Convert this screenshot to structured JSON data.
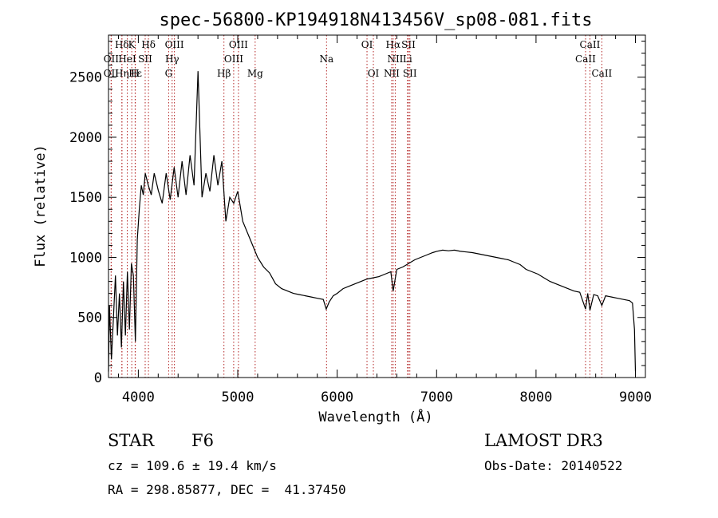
{
  "chart_data": {
    "type": "line",
    "title": "spec-56800-KP194918N413456V_sp08-081.fits",
    "xlabel": "Wavelength (Å)",
    "ylabel": "Flux (relative)",
    "xlim": [
      3700,
      9100
    ],
    "ylim": [
      0,
      2850
    ],
    "xticks": [
      4000,
      5000,
      6000,
      7000,
      8000,
      9000
    ],
    "yticks": [
      0,
      500,
      1000,
      1500,
      2000,
      2500
    ],
    "series": [
      {
        "x": [
          3700,
          3710,
          3730,
          3750,
          3770,
          3790,
          3810,
          3830,
          3850,
          3870,
          3890,
          3910,
          3930,
          3950,
          3970,
          3990,
          4010,
          4030,
          4050,
          4070,
          4100,
          4130,
          4160,
          4200,
          4240,
          4280,
          4320,
          4360,
          4400,
          4440,
          4480,
          4520,
          4560,
          4600,
          4640,
          4680,
          4720,
          4760,
          4800,
          4840,
          4880,
          4920,
          4960,
          5000,
          5050,
          5100,
          5150,
          5200,
          5260,
          5320,
          5380,
          5440,
          5500,
          5560,
          5620,
          5680,
          5740,
          5800,
          5860,
          5890,
          5920,
          5960,
          6000,
          6060,
          6120,
          6180,
          6240,
          6300,
          6360,
          6420,
          6480,
          6540,
          6563,
          6600,
          6660,
          6720,
          6780,
          6840,
          6900,
          6960,
          7000,
          7060,
          7120,
          7180,
          7240,
          7300,
          7360,
          7420,
          7480,
          7540,
          7600,
          7660,
          7720,
          7780,
          7840,
          7900,
          7960,
          8020,
          8080,
          8140,
          8200,
          8260,
          8320,
          8380,
          8440,
          8498,
          8520,
          8542,
          8580,
          8620,
          8662,
          8700,
          8760,
          8820,
          8880,
          8940,
          8970,
          8990,
          9000
        ],
        "values": [
          50,
          600,
          150,
          500,
          850,
          350,
          700,
          250,
          800,
          350,
          880,
          400,
          950,
          850,
          300,
          1150,
          1400,
          1600,
          1520,
          1700,
          1600,
          1520,
          1700,
          1560,
          1450,
          1700,
          1480,
          1750,
          1500,
          1800,
          1520,
          1850,
          1600,
          2550,
          1500,
          1700,
          1550,
          1850,
          1600,
          1800,
          1300,
          1500,
          1450,
          1550,
          1300,
          1200,
          1100,
          1000,
          920,
          870,
          780,
          740,
          720,
          700,
          690,
          680,
          670,
          660,
          650,
          570,
          630,
          680,
          700,
          740,
          760,
          780,
          800,
          820,
          830,
          840,
          860,
          880,
          720,
          900,
          920,
          950,
          980,
          1000,
          1020,
          1040,
          1050,
          1060,
          1055,
          1060,
          1050,
          1045,
          1040,
          1030,
          1020,
          1010,
          1000,
          990,
          980,
          960,
          940,
          900,
          880,
          860,
          830,
          800,
          780,
          760,
          740,
          720,
          710,
          570,
          700,
          560,
          690,
          680,
          600,
          680,
          670,
          660,
          650,
          640,
          620,
          400,
          50
        ]
      }
    ],
    "lines": [
      {
        "label": "Hδ",
        "x": 3835,
        "row": 0
      },
      {
        "label": "K",
        "x": 3934,
        "row": 0
      },
      {
        "label": "Hδ",
        "x": 4102,
        "row": 0
      },
      {
        "label": "OIII",
        "x": 4363,
        "row": 0
      },
      {
        "label": "OIII",
        "x": 5007,
        "row": 0
      },
      {
        "label": "OI",
        "x": 6300,
        "row": 0
      },
      {
        "label": "Hα",
        "x": 6563,
        "row": 0
      },
      {
        "label": "SII",
        "x": 6717,
        "row": 0
      },
      {
        "label": "CaII",
        "x": 8542,
        "row": 0
      },
      {
        "label": "OII",
        "x": 3727,
        "row": 1
      },
      {
        "label": "HeI",
        "x": 3889,
        "row": 1
      },
      {
        "label": "SII",
        "x": 4069,
        "row": 1
      },
      {
        "label": "Hγ",
        "x": 4340,
        "row": 1
      },
      {
        "label": "OIII",
        "x": 4959,
        "row": 1
      },
      {
        "label": "Na",
        "x": 5893,
        "row": 1
      },
      {
        "label": "NII",
        "x": 6584,
        "row": 1
      },
      {
        "label": "Li",
        "x": 6707,
        "row": 1
      },
      {
        "label": "CaII",
        "x": 8498,
        "row": 1
      },
      {
        "label": "OII",
        "x": 3727,
        "row": 2
      },
      {
        "label": "Hε",
        "x": 3970,
        "row": 2
      },
      {
        "label": "Hη",
        "x": 3835,
        "row": 2
      },
      {
        "label": "H",
        "x": 3968,
        "row": 2
      },
      {
        "label": "G",
        "x": 4305,
        "row": 2
      },
      {
        "label": "Hβ",
        "x": 4861,
        "row": 2
      },
      {
        "label": "Mg",
        "x": 5175,
        "row": 2
      },
      {
        "label": "OI",
        "x": 6364,
        "row": 2
      },
      {
        "label": "NII",
        "x": 6548,
        "row": 2
      },
      {
        "label": "SII",
        "x": 6731,
        "row": 2
      },
      {
        "label": "CaII",
        "x": 8662,
        "row": 2
      }
    ],
    "grid": false,
    "legend": "none"
  },
  "info": {
    "object_type": "STAR",
    "subclass": "F6",
    "survey": "LAMOST DR3",
    "cz": "cz = 109.6 ± 19.4 km/s",
    "obs_date": "Obs-Date: 20140522",
    "coords": "RA = 298.85877, DEC =  41.37450"
  }
}
